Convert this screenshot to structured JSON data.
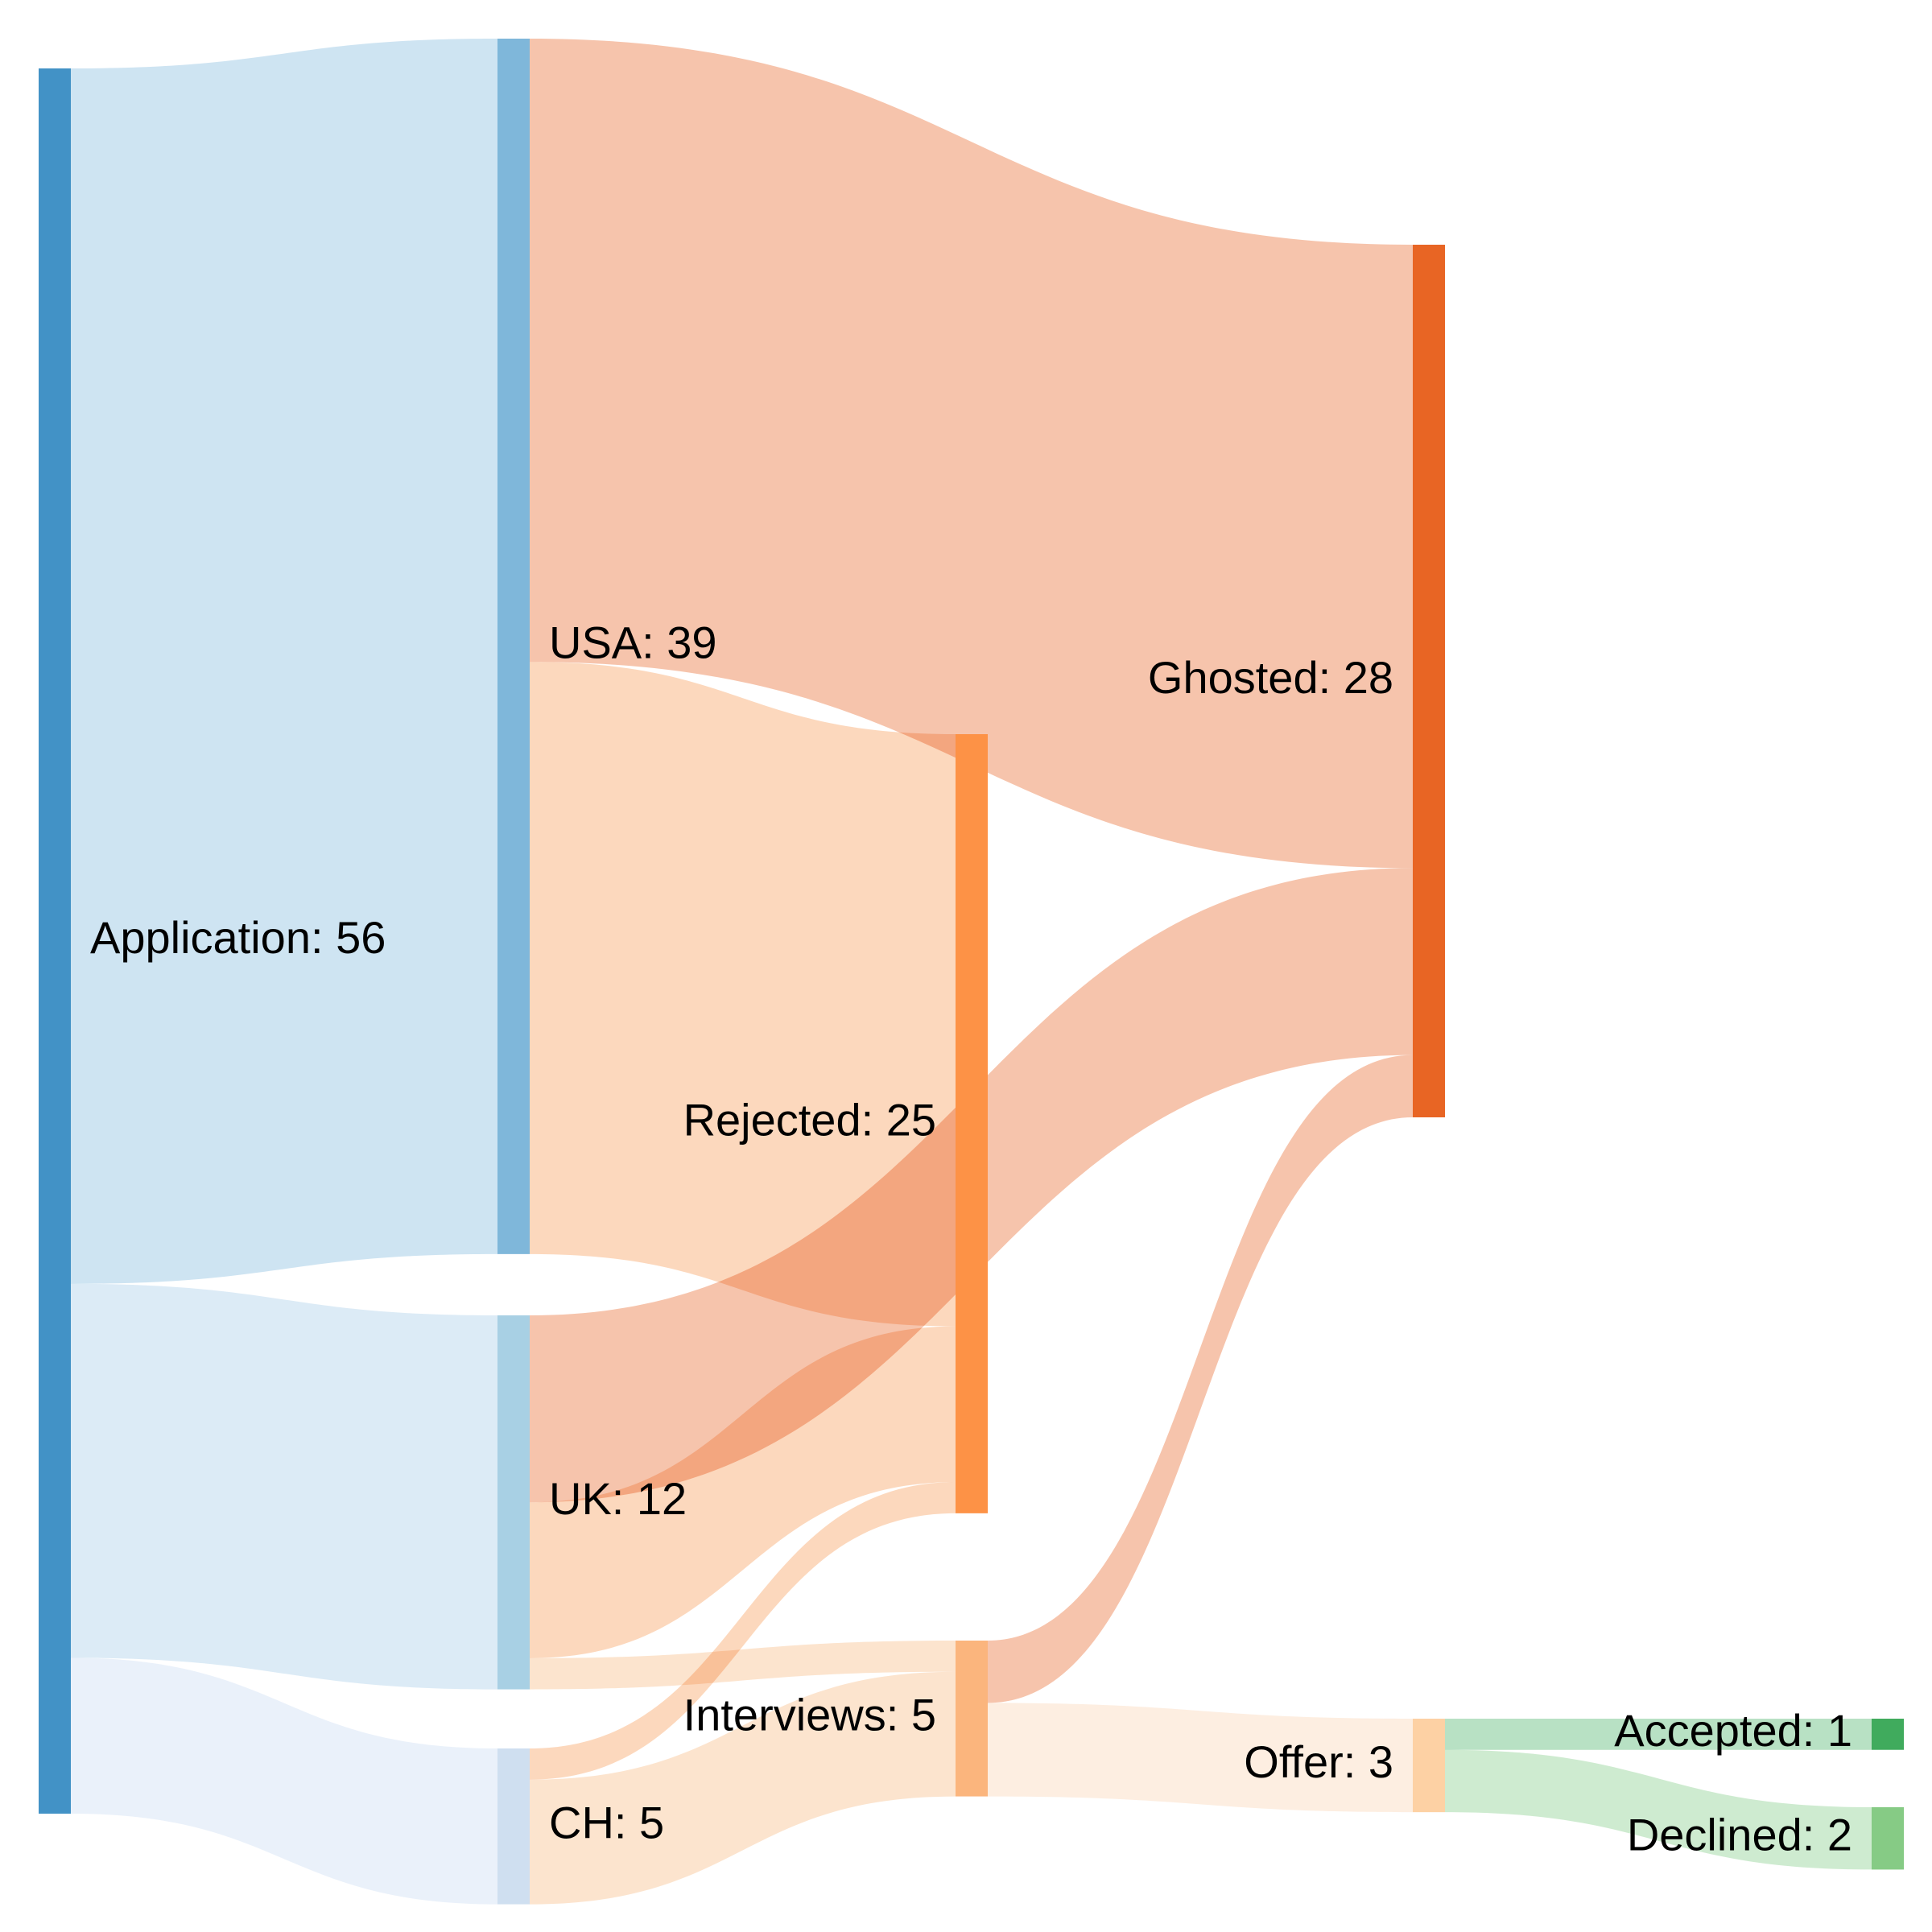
{
  "chart_data": {
    "type": "sankey",
    "nodes": [
      {
        "id": "application",
        "name": "Application",
        "value": 56,
        "color": "#4292c6",
        "label": "Application: 56"
      },
      {
        "id": "usa",
        "name": "USA",
        "value": 39,
        "color": "#7fb7da",
        "label": "USA: 39"
      },
      {
        "id": "uk",
        "name": "UK",
        "value": 12,
        "color": "#a8d0e4",
        "label": "UK: 12"
      },
      {
        "id": "ch",
        "name": "CH",
        "value": 5,
        "color": "#cfdff0",
        "label": "CH: 5"
      },
      {
        "id": "rejected",
        "name": "Rejected",
        "value": 25,
        "color": "#fd9246",
        "label": "Rejected: 25"
      },
      {
        "id": "interviews",
        "name": "Interviews",
        "value": 5,
        "color": "#fbb57d",
        "label": "Interviews: 5"
      },
      {
        "id": "ghosted",
        "name": "Ghosted",
        "value": 28,
        "color": "#e86524",
        "label": "Ghosted: 28"
      },
      {
        "id": "offer",
        "name": "Offer",
        "value": 3,
        "color": "#fdd1a4",
        "label": "Offer: 3"
      },
      {
        "id": "accepted",
        "name": "Accepted",
        "value": 1,
        "color": "#40ab5d",
        "label": "Accepted: 1"
      },
      {
        "id": "declined",
        "name": "Declined",
        "value": 2,
        "color": "#86cb85",
        "label": "Declined: 2"
      }
    ],
    "links": [
      {
        "source": "application",
        "target": "usa",
        "value": 39,
        "color": "#c5dff0"
      },
      {
        "source": "application",
        "target": "uk",
        "value": 12,
        "color": "#d6e8f4"
      },
      {
        "source": "application",
        "target": "ch",
        "value": 5,
        "color": "#e6eff9"
      },
      {
        "source": "usa",
        "target": "ghosted",
        "value": 20,
        "color": "#f4ba9d"
      },
      {
        "source": "usa",
        "target": "rejected",
        "value": 19,
        "color": "#fbd1b2"
      },
      {
        "source": "uk",
        "target": "ghosted",
        "value": 6,
        "color": "#f4ba9d"
      },
      {
        "source": "uk",
        "target": "rejected",
        "value": 5,
        "color": "#fbd1b2"
      },
      {
        "source": "uk",
        "target": "interviews",
        "value": 1,
        "color": "#fcdfc6"
      },
      {
        "source": "ch",
        "target": "rejected",
        "value": 1,
        "color": "#fbd1b2"
      },
      {
        "source": "ch",
        "target": "interviews",
        "value": 4,
        "color": "#fcdfc6"
      },
      {
        "source": "interviews",
        "target": "ghosted",
        "value": 2,
        "color": "#f4ba9d"
      },
      {
        "source": "interviews",
        "target": "offer",
        "value": 3,
        "color": "#fdebdc"
      },
      {
        "source": "offer",
        "target": "accepted",
        "value": 1,
        "color": "#acdcba"
      },
      {
        "source": "offer",
        "target": "declined",
        "value": 2,
        "color": "#c6e7c8"
      }
    ]
  }
}
